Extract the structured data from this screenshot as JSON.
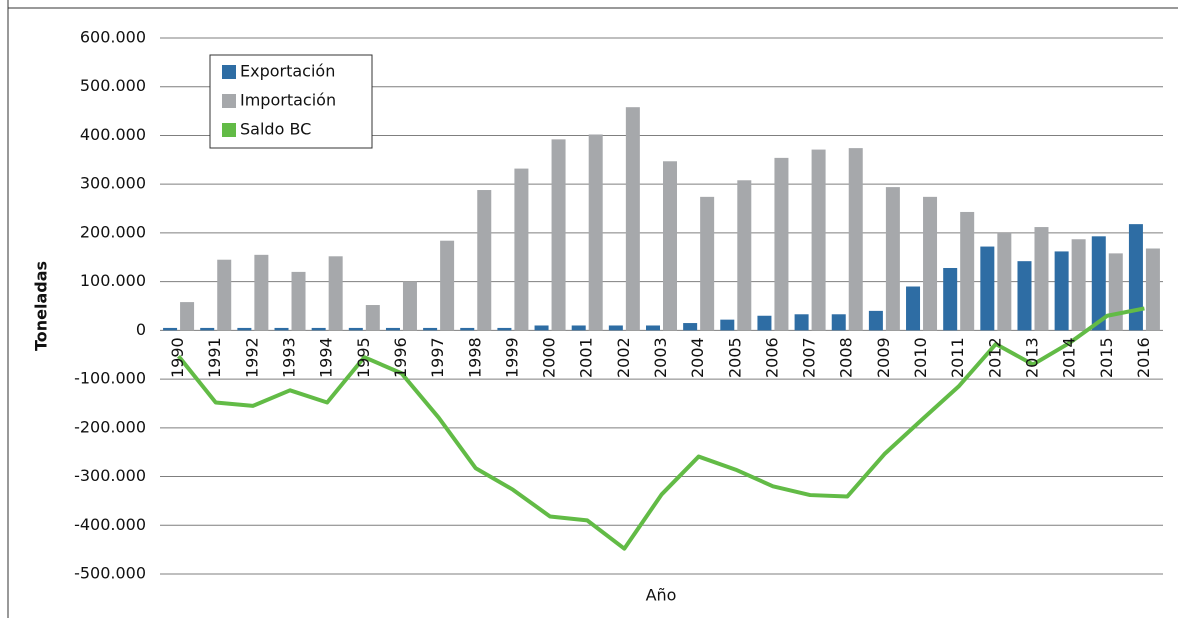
{
  "chart_data": {
    "type": "bar",
    "x_label": "Año",
    "y_label": "Toneladas",
    "categories": [
      "1990",
      "1991",
      "1992",
      "1993",
      "1994",
      "1995",
      "1996",
      "1997",
      "1998",
      "1999",
      "2000",
      "2001",
      "2002",
      "2003",
      "2004",
      "2005",
      "2006",
      "2007",
      "2008",
      "2009",
      "2010",
      "2011",
      "2012",
      "2013",
      "2014",
      "2015",
      "2016"
    ],
    "series": [
      {
        "name": "Exportación",
        "color": "#2e6da4",
        "type": "bar",
        "values": [
          5000,
          5000,
          5000,
          5000,
          5000,
          5000,
          5000,
          5000,
          5000,
          5000,
          10000,
          10000,
          10000,
          10000,
          15000,
          22000,
          30000,
          33000,
          33000,
          40000,
          90000,
          128000,
          172000,
          142000,
          162000,
          193000,
          218000
        ]
      },
      {
        "name": "Importación",
        "color": "#a6a8ab",
        "type": "bar",
        "values": [
          58000,
          145000,
          155000,
          120000,
          152000,
          52000,
          100000,
          184000,
          288000,
          332000,
          392000,
          402000,
          458000,
          347000,
          274000,
          308000,
          354000,
          371000,
          374000,
          294000,
          274000,
          243000,
          200000,
          212000,
          187000,
          158000,
          168000
        ]
      },
      {
        "name": "Saldo BC",
        "color": "#62bb46",
        "type": "line",
        "values": [
          -53000,
          -148000,
          -155000,
          -123000,
          -148000,
          -55000,
          -88000,
          -179000,
          -283000,
          -327000,
          -382000,
          -390000,
          -448000,
          -337000,
          -259000,
          -286000,
          -320000,
          -338000,
          -341000,
          -254000,
          -184000,
          -115000,
          -28000,
          -70000,
          -25000,
          30000,
          45000
        ]
      }
    ],
    "ylim": [
      -500000,
      600000
    ],
    "yticks": [
      {
        "value": -500000,
        "label": "-500.000"
      },
      {
        "value": -400000,
        "label": "-400.000"
      },
      {
        "value": -300000,
        "label": "-300.000"
      },
      {
        "value": -200000,
        "label": "-200.000"
      },
      {
        "value": -100000,
        "label": "-100.000"
      },
      0,
      {
        "value": 100000,
        "label": "100.000"
      },
      {
        "value": 200000,
        "label": "200.000"
      },
      {
        "value": 300000,
        "label": "300.000"
      },
      {
        "value": 400000,
        "label": "400.000"
      },
      {
        "value": 500000,
        "label": "500.000"
      },
      {
        "value": 600000,
        "label": "600.000"
      }
    ],
    "grid": true,
    "legend": "upper left"
  }
}
